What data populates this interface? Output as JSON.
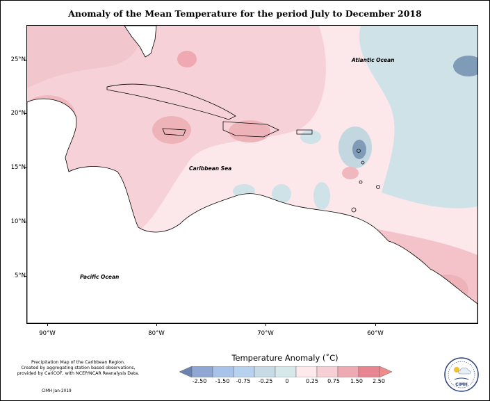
{
  "title": "Anomaly of the Mean Temperature for the period July to December 2018",
  "axes": {
    "latitude_labels": [
      "25°N",
      "20°N",
      "15°N",
      "10°N",
      "5°N"
    ],
    "longitude_labels": [
      "90°W",
      "80°W",
      "70°W",
      "60°W"
    ]
  },
  "map_labels": {
    "atlantic": "Atlantic Ocean",
    "caribbean": "Caribbean Sea",
    "pacific": "Pacific Ocean"
  },
  "legend": {
    "title": "Temperature Anomaly (˚C)",
    "ticks": [
      "-2.50",
      "-1.50",
      "-0.75",
      "-0.25",
      "0",
      "0.25",
      "0.75",
      "1.50",
      "2.50"
    ],
    "colors": [
      "#6a83b0",
      "#8fa7d2",
      "#a9c2ea",
      "#c6dbe5",
      "#d7e8ea",
      "#fde9ec",
      "#f6cfd5",
      "#eeaab3",
      "#e98590",
      "#f18a8a"
    ]
  },
  "colors": {
    "near_zero_warm": "#fce3e6",
    "warm": "#f7d0d6",
    "warmer": "#eeb3b9",
    "cool": "#cfe2e8",
    "cooler": "#7f9bb8"
  },
  "footer": {
    "credit_line1": "Precipitation Map of the Caribbean Region.",
    "credit_line2": "Created by aggregating station based observations,",
    "credit_line3": "provided by CariCOF, with NCEP/NCAR Reanalysis Data.",
    "credit_date": "CIMH Jan-2019",
    "logo_text": "CIMH"
  }
}
